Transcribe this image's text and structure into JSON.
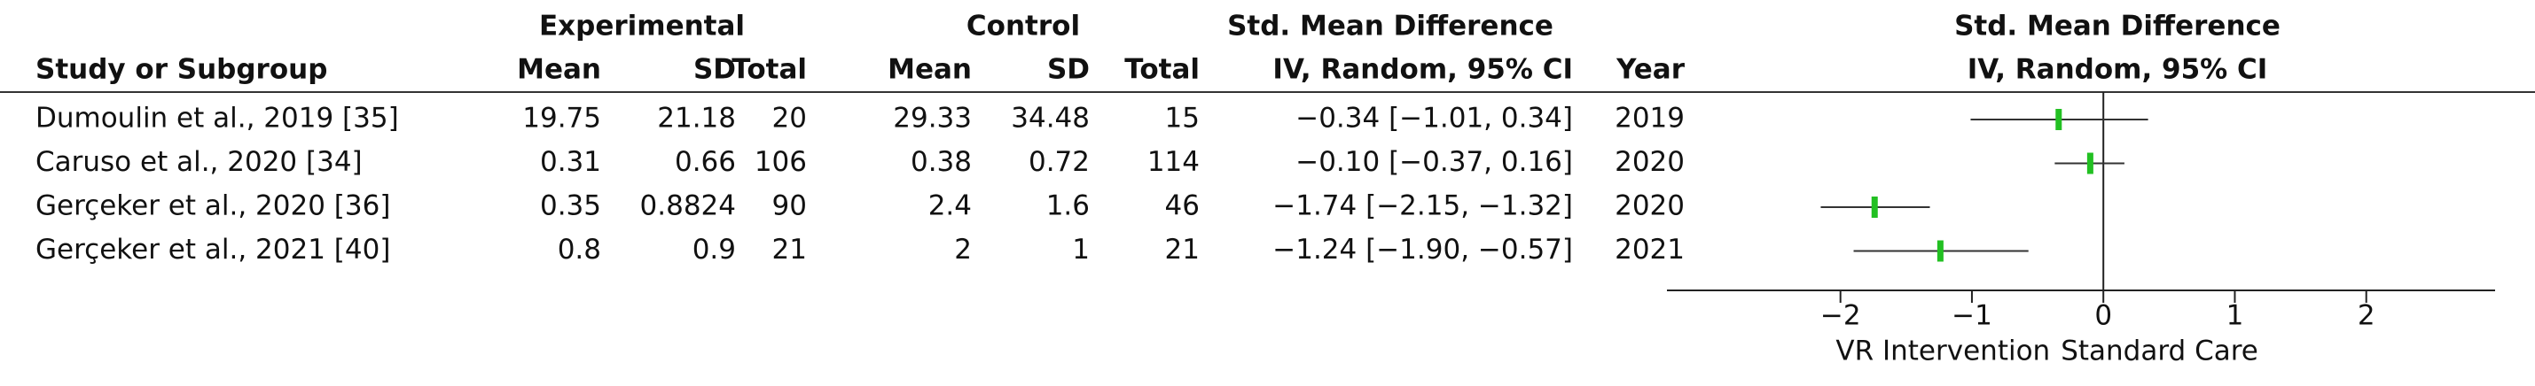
{
  "chart_data": {
    "type": "forest",
    "header": {
      "study": "Study or Subgroup",
      "experimental": "Experimental",
      "control": "Control",
      "mean": "Mean",
      "sd": "SD",
      "total": "Total",
      "smd": "Std. Mean Difference",
      "method": "IV, Random, 95% CI",
      "year": "Year"
    },
    "categories": [
      "Dumoulin et al., 2019 [35]",
      "Caruso et al., 2020 [34]",
      "Gerçeker et al., 2020 [36]",
      "Gerçeker et al., 2021 [40]"
    ],
    "exp_mean": [
      19.75,
      0.31,
      0.35,
      0.8
    ],
    "exp_sd": [
      21.18,
      0.66,
      0.8824,
      0.9
    ],
    "exp_total": [
      20,
      106,
      90,
      21
    ],
    "ctrl_mean": [
      29.33,
      0.38,
      2.4,
      2
    ],
    "ctrl_sd": [
      34.48,
      0.72,
      1.6,
      1
    ],
    "ctrl_total": [
      15,
      114,
      46,
      21
    ],
    "values": [
      -0.34,
      -0.1,
      -1.74,
      -1.24
    ],
    "ci_lower": [
      -1.01,
      -0.37,
      -2.15,
      -1.9
    ],
    "ci_upper": [
      0.34,
      0.16,
      -1.32,
      -0.57
    ],
    "value_labels": [
      "−0.34 [−1.01, 0.34]",
      "−0.10 [−0.37, 0.16]",
      "−1.74 [−2.15, −1.32]",
      "−1.24 [−1.90, −0.57]"
    ],
    "year": [
      2019,
      2020,
      2020,
      2021
    ],
    "color": "#22c022",
    "xlim": [
      -3.32,
      2.98
    ],
    "xticks": [
      {
        "value": -2,
        "label": "−2"
      },
      {
        "value": -1,
        "label": "−1"
      },
      0,
      1,
      2
    ],
    "x_label_left": "VR Intervention",
    "x_label_right": "Standard Care"
  }
}
